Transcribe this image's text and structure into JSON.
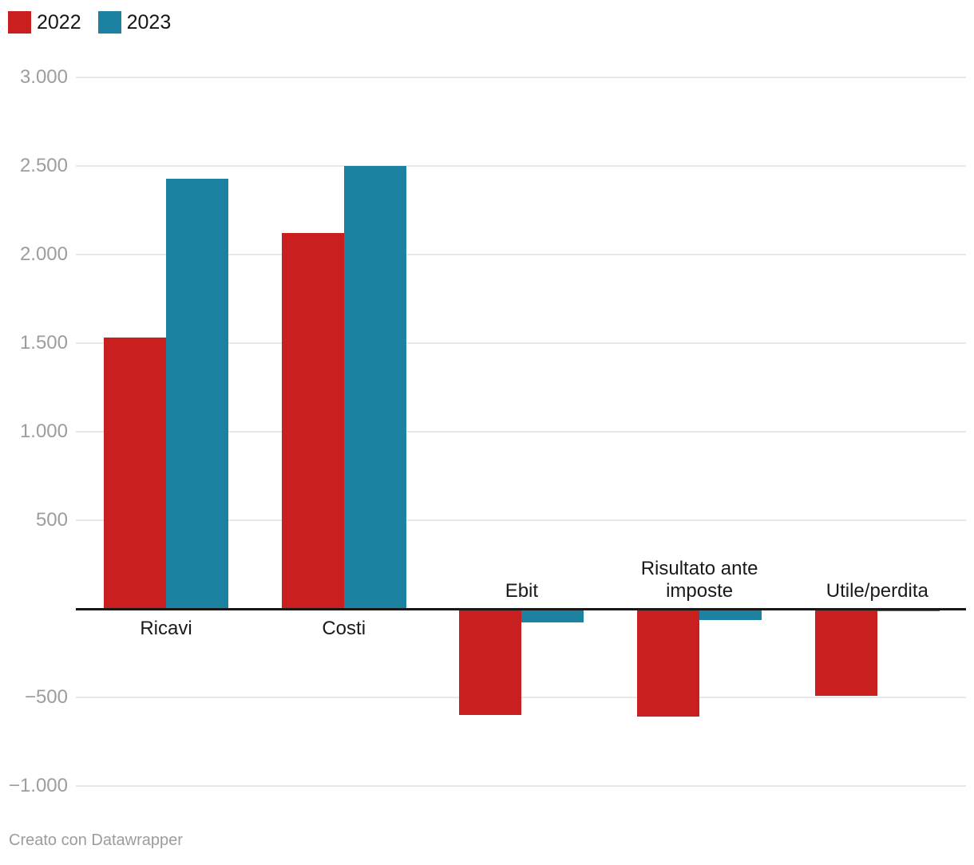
{
  "legend": {
    "items": [
      {
        "label": "2022",
        "color": "#c9201f"
      },
      {
        "label": "2023",
        "color": "#1d81a1"
      }
    ]
  },
  "attribution": "Creato con Datawrapper",
  "colors": {
    "background": "#ffffff",
    "grid": "#e8e8e8",
    "axis_line": "#181818",
    "tick_label": "#9d9d9d",
    "category_label": "#1a1a1a",
    "attribution": "#9c9c9c",
    "series_2022": "#c9201f",
    "series_2023": "#1d81a1"
  },
  "chart_data": {
    "type": "bar",
    "title": "",
    "xlabel": "",
    "ylabel": "",
    "grid": true,
    "legend_position": "top-left",
    "ylim": [
      -1000,
      3000
    ],
    "categories": [
      "Ricavi",
      "Costi",
      "Ebit",
      "Risultato ante imposte",
      "Utile/perdita"
    ],
    "series": [
      {
        "name": "2022",
        "color": "#c9201f",
        "values": [
          1530,
          2120,
          -600,
          -610,
          -490
        ]
      },
      {
        "name": "2023",
        "color": "#1d81a1",
        "values": [
          2430,
          2500,
          -75,
          -65,
          -15
        ]
      }
    ],
    "y_ticks": [
      {
        "value": 3000,
        "label": "3.000"
      },
      {
        "value": 2500,
        "label": "2.500"
      },
      {
        "value": 2000,
        "label": "2.000"
      },
      {
        "value": 1500,
        "label": "1.500"
      },
      {
        "value": 1000,
        "label": "1.000"
      },
      {
        "value": 500,
        "label": "500"
      },
      {
        "value": -500,
        "label": "−500"
      },
      {
        "value": -1000,
        "label": "−1.000"
      }
    ]
  }
}
